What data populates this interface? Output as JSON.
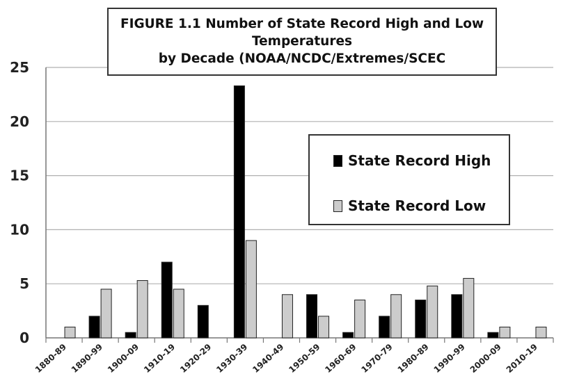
{
  "chart_data": {
    "type": "bar",
    "title_lines": [
      "FIGURE 1.1  Number of State Record High and Low",
      "Temperatures",
      "by Decade (NOAA/NCDC/Extremes/SCEC"
    ],
    "categories": [
      "1880-89",
      "1890-99",
      "1900-09",
      "1910-19",
      "1920-29",
      "1930-39",
      "1940-49",
      "1950-59",
      "1960-69",
      "1970-79",
      "1980-89",
      "1990-99",
      "2000-09",
      "2010-19"
    ],
    "series": [
      {
        "name": "State Record High",
        "color": "#000000",
        "values": [
          0,
          2,
          0.5,
          7,
          3,
          23.3,
          0,
          4,
          0.5,
          2,
          3.5,
          4,
          0.5,
          0
        ]
      },
      {
        "name": "State Record Low",
        "color": "#cccccc",
        "values": [
          1,
          4.5,
          5.3,
          4.5,
          0,
          9,
          4,
          2,
          3.5,
          4,
          4.8,
          5.5,
          1,
          1
        ]
      }
    ],
    "ylim": [
      0,
      25
    ],
    "yticks": [
      0,
      5,
      10,
      15,
      20,
      25
    ],
    "grid": true,
    "legend_position": "upper-right"
  }
}
